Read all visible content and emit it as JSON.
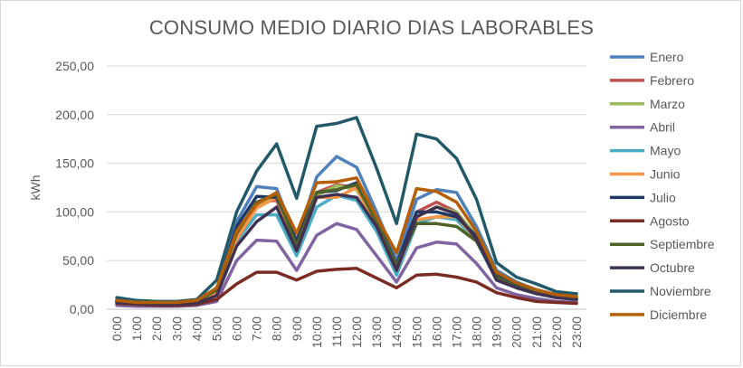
{
  "chart_data": {
    "type": "line",
    "title": "CONSUMO MEDIO DIARIO DIAS LABORABLES",
    "xlabel": "",
    "ylabel": "kWh",
    "ylim": [
      0,
      250
    ],
    "yticks": [
      "0,00",
      "50,00",
      "100,00",
      "150,00",
      "200,00",
      "250,00"
    ],
    "grid": true,
    "legend_position": "right",
    "categories": [
      "0:00",
      "1:00",
      "2:00",
      "3:00",
      "4:00",
      "5:00",
      "6:00",
      "7:00",
      "8:00",
      "9:00",
      "10:00",
      "11:00",
      "12:00",
      "13:00",
      "14:00",
      "15:00",
      "16:00",
      "17:00",
      "18:00",
      "19:00",
      "20:00",
      "21:00",
      "22:00",
      "23:00"
    ],
    "series": [
      {
        "name": "Enero",
        "color": "#4f81bd",
        "values": [
          8,
          7,
          6,
          6,
          8,
          20,
          90,
          126,
          124,
          70,
          136,
          157,
          146,
          100,
          50,
          113,
          123,
          120,
          85,
          40,
          28,
          20,
          15,
          12
        ]
      },
      {
        "name": "Febrero",
        "color": "#c0504d",
        "values": [
          8,
          6,
          6,
          6,
          7,
          18,
          78,
          110,
          112,
          65,
          120,
          128,
          125,
          90,
          45,
          100,
          110,
          100,
          75,
          35,
          25,
          18,
          13,
          11
        ]
      },
      {
        "name": "Marzo",
        "color": "#9bbb59",
        "values": [
          8,
          6,
          6,
          6,
          7,
          18,
          75,
          107,
          115,
          65,
          117,
          127,
          123,
          88,
          43,
          95,
          105,
          100,
          75,
          33,
          24,
          17,
          13,
          11
        ]
      },
      {
        "name": "Abril",
        "color": "#8064a2",
        "values": [
          4,
          3,
          3,
          3,
          4,
          8,
          50,
          71,
          70,
          40,
          76,
          88,
          82,
          55,
          28,
          63,
          69,
          67,
          47,
          22,
          15,
          11,
          8,
          7
        ]
      },
      {
        "name": "Mayo",
        "color": "#4bacc6",
        "values": [
          8,
          6,
          6,
          6,
          7,
          17,
          70,
          97,
          97,
          55,
          105,
          117,
          112,
          80,
          35,
          88,
          95,
          92,
          70,
          30,
          22,
          16,
          12,
          10
        ]
      },
      {
        "name": "Junio",
        "color": "#f79646",
        "values": [
          8,
          6,
          6,
          6,
          7,
          17,
          72,
          104,
          115,
          60,
          115,
          115,
          125,
          85,
          40,
          92,
          95,
          95,
          72,
          32,
          23,
          17,
          13,
          10
        ]
      },
      {
        "name": "Julio",
        "color": "#1f3864",
        "values": [
          9,
          7,
          7,
          7,
          8,
          20,
          85,
          116,
          115,
          70,
          120,
          122,
          130,
          92,
          46,
          100,
          100,
          95,
          75,
          35,
          25,
          18,
          14,
          11
        ]
      },
      {
        "name": "Agosto",
        "color": "#7b2c22",
        "values": [
          6,
          5,
          4,
          4,
          5,
          10,
          26,
          38,
          38,
          30,
          39,
          41,
          42,
          32,
          22,
          35,
          36,
          33,
          28,
          17,
          12,
          8,
          7,
          6
        ]
      },
      {
        "name": "Septiembre",
        "color": "#4f6228",
        "values": [
          9,
          7,
          7,
          7,
          8,
          20,
          78,
          110,
          118,
          65,
          120,
          123,
          128,
          90,
          45,
          88,
          88,
          85,
          70,
          33,
          23,
          17,
          13,
          11
        ]
      },
      {
        "name": "Octubre",
        "color": "#403151",
        "values": [
          7,
          6,
          5,
          5,
          6,
          14,
          65,
          90,
          105,
          60,
          115,
          118,
          115,
          85,
          40,
          95,
          105,
          98,
          72,
          30,
          22,
          16,
          12,
          10
        ]
      },
      {
        "name": "Noviembre",
        "color": "#215968",
        "values": [
          12,
          9,
          8,
          8,
          10,
          30,
          100,
          142,
          170,
          114,
          188,
          191,
          197,
          145,
          88,
          180,
          175,
          155,
          113,
          48,
          33,
          26,
          18,
          16
        ]
      },
      {
        "name": "Diciembre",
        "color": "#b45f06",
        "values": [
          9,
          7,
          7,
          7,
          9,
          22,
          80,
          108,
          120,
          78,
          130,
          131,
          135,
          95,
          58,
          124,
          121,
          110,
          80,
          38,
          27,
          20,
          15,
          13
        ]
      }
    ]
  }
}
